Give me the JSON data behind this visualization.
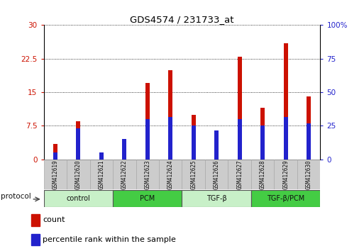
{
  "title": "GDS4574 / 231733_at",
  "samples": [
    "GSM412619",
    "GSM412620",
    "GSM412621",
    "GSM412622",
    "GSM412623",
    "GSM412624",
    "GSM412625",
    "GSM412626",
    "GSM412627",
    "GSM412628",
    "GSM412629",
    "GSM412630"
  ],
  "red_values": [
    3.5,
    8.5,
    0.5,
    3.5,
    17.0,
    20.0,
    10.0,
    6.5,
    23.0,
    11.5,
    26.0,
    14.0
  ],
  "blue_percentile": [
    5.0,
    23.0,
    5.0,
    15.0,
    30.0,
    31.7,
    25.0,
    21.7,
    30.0,
    25.0,
    31.7,
    26.7
  ],
  "ylim_left": [
    0,
    30
  ],
  "ylim_right": [
    0,
    100
  ],
  "yticks_left": [
    0,
    7.5,
    15,
    22.5,
    30
  ],
  "yticks_right": [
    0,
    25,
    50,
    75,
    100
  ],
  "groups": [
    {
      "label": "control",
      "start": 0,
      "end": 3,
      "color": "#c8f0c8"
    },
    {
      "label": "PCM",
      "start": 3,
      "end": 6,
      "color": "#44cc44"
    },
    {
      "label": "TGF-β",
      "start": 6,
      "end": 9,
      "color": "#c8f0c8"
    },
    {
      "label": "TGF-β/PCM",
      "start": 9,
      "end": 12,
      "color": "#44cc44"
    }
  ],
  "red_color": "#cc1100",
  "blue_color": "#2222cc",
  "red_bar_width": 0.18,
  "blue_bar_width": 0.18,
  "left_axis_color": "#cc1100",
  "right_axis_color": "#2222cc",
  "legend_red": "count",
  "legend_blue": "percentile rank within the sample",
  "tick_bg": "#cccccc"
}
